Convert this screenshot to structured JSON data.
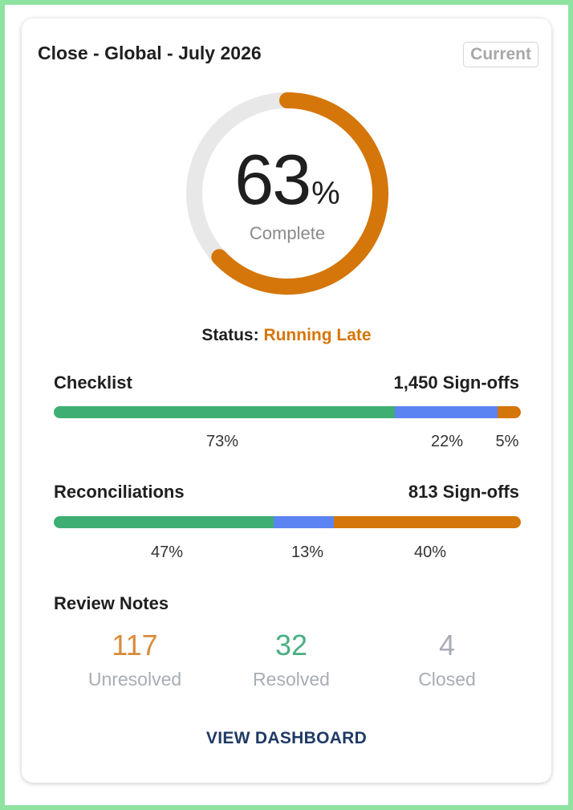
{
  "card": {
    "title": "Close - Global - July 2026",
    "badge": "Current"
  },
  "gauge": {
    "value": "63",
    "unit": "%",
    "label": "Complete",
    "fraction": 0.63,
    "track_color": "#e8e8e8",
    "fill_color": "#d4760a"
  },
  "status": {
    "prefix": "Status:",
    "value": "Running Late"
  },
  "colors": {
    "complete": "#3fae72",
    "in_progress": "#5b84f2",
    "late": "#d4760a"
  },
  "checklist": {
    "title": "Checklist",
    "count": "1,450 Sign-offs",
    "segments": [
      {
        "pct": 73,
        "label": "73%"
      },
      {
        "pct": 22,
        "label": "22%"
      },
      {
        "pct": 5,
        "label": "5%"
      }
    ]
  },
  "reconciliations": {
    "title": "Reconciliations",
    "count": "813 Sign-offs",
    "segments": [
      {
        "pct": 47,
        "label": "47%"
      },
      {
        "pct": 13,
        "label": "13%"
      },
      {
        "pct": 40,
        "label": "40%"
      }
    ]
  },
  "review_notes": {
    "title": "Review Notes",
    "items": [
      {
        "value": "117",
        "label": "Unresolved",
        "color": "#d98b3a"
      },
      {
        "value": "32",
        "label": "Resolved",
        "color": "#4cae82"
      },
      {
        "value": "4",
        "label": "Closed",
        "color": "#a8adb5"
      }
    ]
  },
  "actions": {
    "view_dashboard": "VIEW DASHBOARD"
  }
}
